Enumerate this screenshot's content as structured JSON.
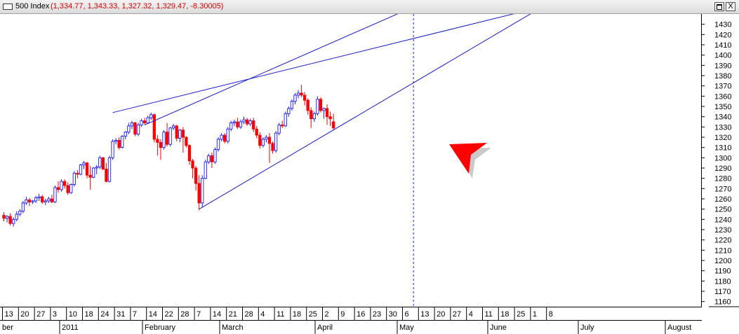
{
  "window": {
    "title_name": "500 Index",
    "title_values": "(1,334.77, 1,343.33, 1,327.32, 1,329.47, -8.30005)",
    "restore_label": "restore",
    "close_label": "X"
  },
  "colors": {
    "up": "#1a1aff",
    "down": "#ff0000",
    "trendline": "#1a1acc",
    "arrow": "#ff0000",
    "marker": "#1a1aff"
  },
  "chart_data": {
    "type": "candlestick",
    "ylim": [
      1155,
      1440
    ],
    "y_ticks": [
      1160,
      1170,
      1180,
      1190,
      1200,
      1210,
      1220,
      1230,
      1240,
      1250,
      1260,
      1270,
      1280,
      1290,
      1300,
      1310,
      1320,
      1330,
      1340,
      1350,
      1360,
      1370,
      1380,
      1390,
      1400,
      1410,
      1420,
      1430
    ],
    "x_day_labels": [
      "13",
      "20",
      "27",
      "3",
      "10",
      "18",
      "24",
      "31",
      "7",
      "14",
      "22",
      "28",
      "7",
      "14",
      "21",
      "28",
      "4",
      "11",
      "18",
      "25",
      "2",
      "9",
      "16",
      "23",
      "30",
      "6",
      "13",
      "20",
      "27",
      "4",
      "11",
      "18",
      "25",
      "1",
      "8"
    ],
    "x_month_labels": [
      "ber",
      "2011",
      "February",
      "March",
      "April",
      "May",
      "June",
      "July",
      "August"
    ],
    "candles": [
      {
        "o": 1244,
        "h": 1247,
        "l": 1238,
        "c": 1241
      },
      {
        "o": 1241,
        "h": 1244,
        "l": 1237,
        "c": 1243
      },
      {
        "o": 1243,
        "h": 1246,
        "l": 1234,
        "c": 1236
      },
      {
        "o": 1236,
        "h": 1242,
        "l": 1233,
        "c": 1240
      },
      {
        "o": 1240,
        "h": 1248,
        "l": 1238,
        "c": 1245
      },
      {
        "o": 1245,
        "h": 1250,
        "l": 1243,
        "c": 1248
      },
      {
        "o": 1248,
        "h": 1258,
        "l": 1246,
        "c": 1256
      },
      {
        "o": 1256,
        "h": 1262,
        "l": 1254,
        "c": 1259
      },
      {
        "o": 1259,
        "h": 1261,
        "l": 1253,
        "c": 1257
      },
      {
        "o": 1257,
        "h": 1259,
        "l": 1255,
        "c": 1258
      },
      {
        "o": 1258,
        "h": 1263,
        "l": 1256,
        "c": 1261
      },
      {
        "o": 1261,
        "h": 1265,
        "l": 1258,
        "c": 1262
      },
      {
        "o": 1262,
        "h": 1264,
        "l": 1255,
        "c": 1257
      },
      {
        "o": 1257,
        "h": 1260,
        "l": 1254,
        "c": 1258
      },
      {
        "o": 1258,
        "h": 1262,
        "l": 1256,
        "c": 1260
      },
      {
        "o": 1260,
        "h": 1264,
        "l": 1256,
        "c": 1257
      },
      {
        "o": 1257,
        "h": 1273,
        "l": 1256,
        "c": 1271
      },
      {
        "o": 1271,
        "h": 1277,
        "l": 1266,
        "c": 1269
      },
      {
        "o": 1269,
        "h": 1279,
        "l": 1267,
        "c": 1277
      },
      {
        "o": 1277,
        "h": 1279,
        "l": 1270,
        "c": 1273
      },
      {
        "o": 1273,
        "h": 1276,
        "l": 1264,
        "c": 1266
      },
      {
        "o": 1266,
        "h": 1275,
        "l": 1265,
        "c": 1274
      },
      {
        "o": 1274,
        "h": 1287,
        "l": 1272,
        "c": 1285
      },
      {
        "o": 1285,
        "h": 1288,
        "l": 1280,
        "c": 1284
      },
      {
        "o": 1284,
        "h": 1294,
        "l": 1283,
        "c": 1293
      },
      {
        "o": 1293,
        "h": 1297,
        "l": 1289,
        "c": 1295
      },
      {
        "o": 1295,
        "h": 1296,
        "l": 1280,
        "c": 1283
      },
      {
        "o": 1283,
        "h": 1292,
        "l": 1269,
        "c": 1281
      },
      {
        "o": 1281,
        "h": 1291,
        "l": 1280,
        "c": 1290
      },
      {
        "o": 1290,
        "h": 1293,
        "l": 1284,
        "c": 1291
      },
      {
        "o": 1291,
        "h": 1302,
        "l": 1289,
        "c": 1300
      },
      {
        "o": 1300,
        "h": 1301,
        "l": 1288,
        "c": 1289
      },
      {
        "o": 1289,
        "h": 1295,
        "l": 1276,
        "c": 1277
      },
      {
        "o": 1277,
        "h": 1302,
        "l": 1276,
        "c": 1300
      },
      {
        "o": 1300,
        "h": 1318,
        "l": 1298,
        "c": 1316
      },
      {
        "o": 1316,
        "h": 1319,
        "l": 1313,
        "c": 1317
      },
      {
        "o": 1317,
        "h": 1320,
        "l": 1308,
        "c": 1310
      },
      {
        "o": 1310,
        "h": 1322,
        "l": 1309,
        "c": 1321
      },
      {
        "o": 1321,
        "h": 1326,
        "l": 1318,
        "c": 1325
      },
      {
        "o": 1325,
        "h": 1334,
        "l": 1323,
        "c": 1331
      },
      {
        "o": 1331,
        "h": 1336,
        "l": 1328,
        "c": 1334
      },
      {
        "o": 1334,
        "h": 1335,
        "l": 1321,
        "c": 1323
      },
      {
        "o": 1323,
        "h": 1334,
        "l": 1321,
        "c": 1332
      },
      {
        "o": 1332,
        "h": 1338,
        "l": 1330,
        "c": 1336
      },
      {
        "o": 1336,
        "h": 1339,
        "l": 1332,
        "c": 1334
      },
      {
        "o": 1334,
        "h": 1341,
        "l": 1333,
        "c": 1339
      },
      {
        "o": 1339,
        "h": 1344,
        "l": 1337,
        "c": 1342
      },
      {
        "o": 1342,
        "h": 1343,
        "l": 1315,
        "c": 1318
      },
      {
        "o": 1318,
        "h": 1322,
        "l": 1302,
        "c": 1315
      },
      {
        "o": 1315,
        "h": 1318,
        "l": 1298,
        "c": 1310
      },
      {
        "o": 1310,
        "h": 1327,
        "l": 1308,
        "c": 1325
      },
      {
        "o": 1325,
        "h": 1334,
        "l": 1311,
        "c": 1313
      },
      {
        "o": 1313,
        "h": 1330,
        "l": 1311,
        "c": 1329
      },
      {
        "o": 1329,
        "h": 1333,
        "l": 1327,
        "c": 1331
      },
      {
        "o": 1331,
        "h": 1332,
        "l": 1316,
        "c": 1319
      },
      {
        "o": 1319,
        "h": 1328,
        "l": 1315,
        "c": 1327
      },
      {
        "o": 1327,
        "h": 1330,
        "l": 1305,
        "c": 1320
      },
      {
        "o": 1320,
        "h": 1321,
        "l": 1310,
        "c": 1312
      },
      {
        "o": 1312,
        "h": 1313,
        "l": 1293,
        "c": 1297
      },
      {
        "o": 1297,
        "h": 1299,
        "l": 1280,
        "c": 1290
      },
      {
        "o": 1290,
        "h": 1292,
        "l": 1268,
        "c": 1275
      },
      {
        "o": 1275,
        "h": 1283,
        "l": 1249,
        "c": 1256
      },
      {
        "o": 1256,
        "h": 1283,
        "l": 1252,
        "c": 1280
      },
      {
        "o": 1280,
        "h": 1298,
        "l": 1279,
        "c": 1296
      },
      {
        "o": 1296,
        "h": 1304,
        "l": 1294,
        "c": 1302
      },
      {
        "o": 1302,
        "h": 1305,
        "l": 1290,
        "c": 1296
      },
      {
        "o": 1296,
        "h": 1310,
        "l": 1294,
        "c": 1308
      },
      {
        "o": 1308,
        "h": 1320,
        "l": 1306,
        "c": 1318
      },
      {
        "o": 1318,
        "h": 1324,
        "l": 1316,
        "c": 1322
      },
      {
        "o": 1322,
        "h": 1324,
        "l": 1314,
        "c": 1316
      },
      {
        "o": 1316,
        "h": 1330,
        "l": 1314,
        "c": 1328
      },
      {
        "o": 1328,
        "h": 1336,
        "l": 1326,
        "c": 1334
      },
      {
        "o": 1334,
        "h": 1337,
        "l": 1331,
        "c": 1335
      },
      {
        "o": 1335,
        "h": 1339,
        "l": 1328,
        "c": 1330
      },
      {
        "o": 1330,
        "h": 1337,
        "l": 1328,
        "c": 1335
      },
      {
        "o": 1335,
        "h": 1340,
        "l": 1333,
        "c": 1337
      },
      {
        "o": 1337,
        "h": 1339,
        "l": 1331,
        "c": 1333
      },
      {
        "o": 1333,
        "h": 1338,
        "l": 1331,
        "c": 1336
      },
      {
        "o": 1336,
        "h": 1339,
        "l": 1325,
        "c": 1328
      },
      {
        "o": 1328,
        "h": 1331,
        "l": 1319,
        "c": 1322
      },
      {
        "o": 1322,
        "h": 1325,
        "l": 1309,
        "c": 1312
      },
      {
        "o": 1312,
        "h": 1320,
        "l": 1310,
        "c": 1318
      },
      {
        "o": 1318,
        "h": 1322,
        "l": 1315,
        "c": 1320
      },
      {
        "o": 1320,
        "h": 1324,
        "l": 1295,
        "c": 1314
      },
      {
        "o": 1314,
        "h": 1316,
        "l": 1304,
        "c": 1307
      },
      {
        "o": 1307,
        "h": 1326,
        "l": 1305,
        "c": 1324
      },
      {
        "o": 1324,
        "h": 1334,
        "l": 1322,
        "c": 1332
      },
      {
        "o": 1332,
        "h": 1336,
        "l": 1329,
        "c": 1331
      },
      {
        "o": 1331,
        "h": 1345,
        "l": 1330,
        "c": 1343
      },
      {
        "o": 1343,
        "h": 1350,
        "l": 1340,
        "c": 1348
      },
      {
        "o": 1348,
        "h": 1357,
        "l": 1346,
        "c": 1355
      },
      {
        "o": 1355,
        "h": 1363,
        "l": 1352,
        "c": 1361
      },
      {
        "o": 1361,
        "h": 1366,
        "l": 1358,
        "c": 1363
      },
      {
        "o": 1363,
        "h": 1371,
        "l": 1359,
        "c": 1361
      },
      {
        "o": 1361,
        "h": 1364,
        "l": 1351,
        "c": 1356
      },
      {
        "o": 1356,
        "h": 1358,
        "l": 1342,
        "c": 1346
      },
      {
        "o": 1346,
        "h": 1349,
        "l": 1329,
        "c": 1338
      },
      {
        "o": 1338,
        "h": 1345,
        "l": 1335,
        "c": 1343
      },
      {
        "o": 1343,
        "h": 1360,
        "l": 1341,
        "c": 1357
      },
      {
        "o": 1357,
        "h": 1359,
        "l": 1344,
        "c": 1346
      },
      {
        "o": 1346,
        "h": 1349,
        "l": 1338,
        "c": 1348
      },
      {
        "o": 1348,
        "h": 1352,
        "l": 1332,
        "c": 1340
      },
      {
        "o": 1340,
        "h": 1345,
        "l": 1331,
        "c": 1338
      },
      {
        "o": 1335,
        "h": 1343,
        "l": 1327,
        "c": 1329
      }
    ],
    "trendlines": [
      {
        "from": {
          "i": 61,
          "y": 1250
        },
        "to": {
          "i": 128,
          "y": 1373
        }
      },
      {
        "from": {
          "i": 44,
          "y": 1332
        },
        "to": {
          "i": 120,
          "y": 1436
        }
      },
      {
        "from": {
          "i": 34,
          "y": 1344
        },
        "to": {
          "i": 120,
          "y": 1410
        }
      }
    ],
    "vertical_marker_index": 128
  }
}
